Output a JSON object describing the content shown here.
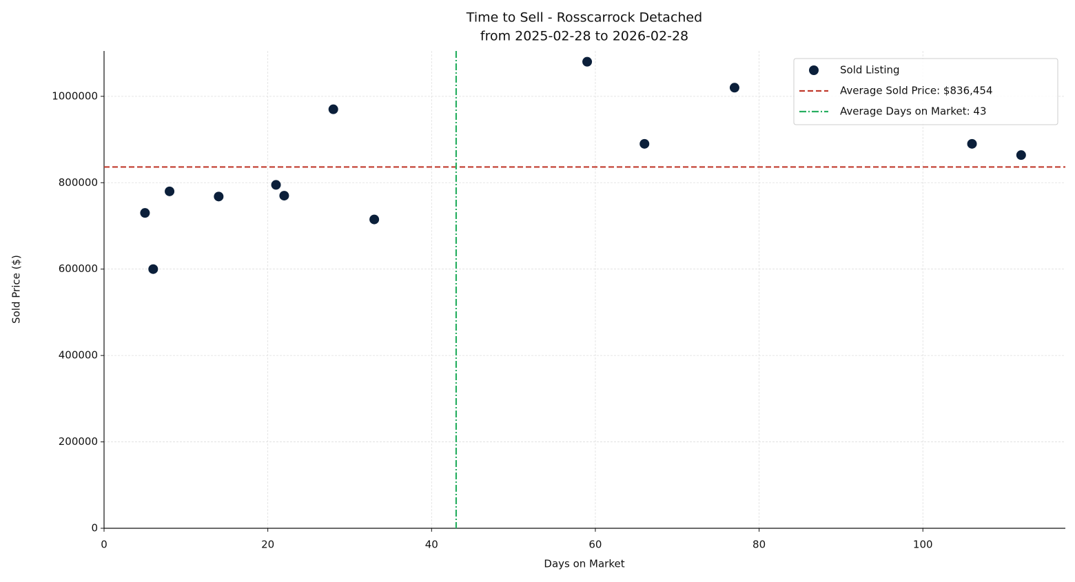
{
  "chart_data": {
    "type": "scatter",
    "title": "Time to Sell - Rosscarrock Detached",
    "subtitle": "from 2025-02-28 to 2026-02-28",
    "x_label": "Days on Market",
    "y_label": "Sold Price ($)",
    "series": [
      {
        "name": "Sold Listing",
        "color": "#0b1f3a",
        "x": [
          5,
          6,
          8,
          14,
          21,
          22,
          28,
          33,
          59,
          66,
          77,
          106,
          112
        ],
        "values": [
          730000,
          600000,
          780000,
          768000,
          795000,
          770000,
          970000,
          715000,
          1080000,
          890000,
          1020000,
          890000,
          864000
        ]
      }
    ],
    "hline": {
      "value": 836454,
      "label": "Average Sold Price: $836,454",
      "color": "#c0392b"
    },
    "vline": {
      "value": 43,
      "label": "Average Days on Market: 43",
      "color": "#27ae60"
    },
    "xlim": [
      0,
      117.4
    ],
    "ylim": [
      0,
      1105000
    ],
    "xticks": [
      0,
      20,
      40,
      60,
      80,
      100
    ],
    "yticks": [
      0,
      200000,
      400000,
      600000,
      800000,
      1000000
    ],
    "grid": true,
    "legend": "upper right"
  }
}
